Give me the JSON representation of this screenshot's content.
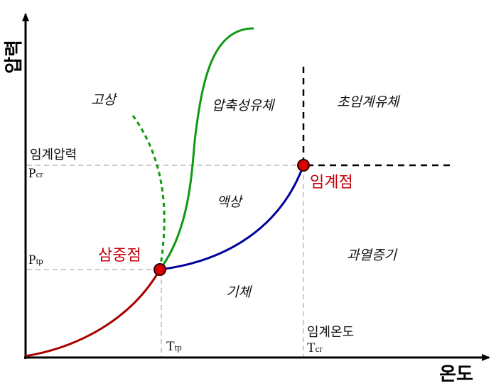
{
  "axes": {
    "x_title": "온도",
    "y_title": "압력"
  },
  "regions": {
    "solid": "고상",
    "compressed_fluid": "압축성유체",
    "supercritical_fluid": "초임계유체",
    "liquid": "액상",
    "superheated_vapor": "과열증기",
    "gas": "기체"
  },
  "labels": {
    "critical_pressure": "임계압력",
    "critical_temperature": "임계온도",
    "p_symbol": "P",
    "t_symbol": "T",
    "cr_sub": "cr",
    "tp_sub": "tp"
  },
  "points": {
    "triple_point": "삼중점",
    "critical_point": "임계점"
  },
  "colors": {
    "sublimation_curve": "#aa0000",
    "fusion_curve": "#119911",
    "vaporization_curve": "#000099",
    "point_fill": "#dd0000",
    "point_label": "#c4000a",
    "guide_line": "#cccccc",
    "boundary_dash": "#000000"
  }
}
